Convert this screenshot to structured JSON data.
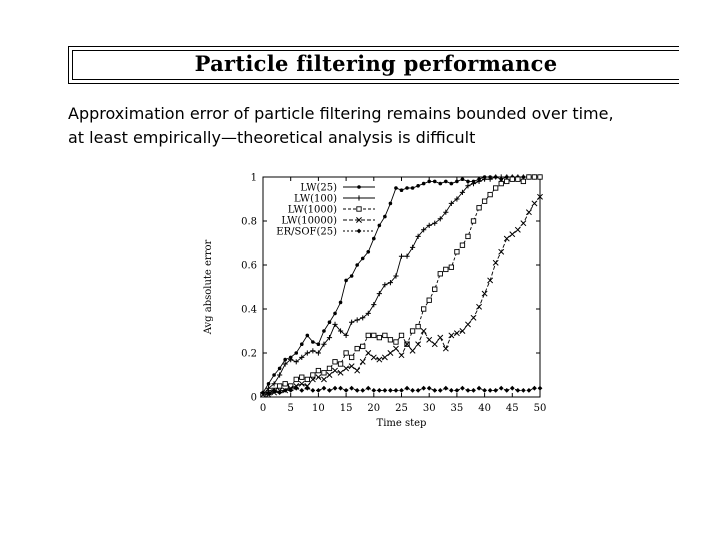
{
  "slide": {
    "title": "Particle filtering performance",
    "body_lines": [
      "Approximation error of particle filtering remains bounded over time,",
      "at least empirically—theoretical analysis is difficult"
    ]
  },
  "chart_data": {
    "type": "line",
    "title": "",
    "xlabel": "Time step",
    "ylabel": "Avg absolute error",
    "xlim": [
      0,
      50
    ],
    "ylim": [
      0,
      1
    ],
    "xticks": [
      "0",
      "5",
      "10",
      "15",
      "20",
      "25",
      "30",
      "35",
      "40",
      "45",
      "50"
    ],
    "yticks": [
      "0",
      "0.2",
      "0.4",
      "0.6",
      "0.8",
      "1"
    ],
    "legend_position": "top-left inside plot",
    "x": [
      0,
      1,
      2,
      3,
      4,
      5,
      6,
      7,
      8,
      9,
      10,
      11,
      12,
      13,
      14,
      15,
      16,
      17,
      18,
      19,
      20,
      21,
      22,
      23,
      24,
      25,
      26,
      27,
      28,
      29,
      30,
      31,
      32,
      33,
      34,
      35,
      36,
      37,
      38,
      39,
      40,
      41,
      42,
      43,
      44,
      45,
      46,
      47,
      48,
      49,
      50
    ],
    "series": [
      {
        "name": "LW(25)",
        "marker": "dot",
        "values": [
          0.02,
          0.06,
          0.1,
          0.13,
          0.17,
          0.18,
          0.2,
          0.24,
          0.28,
          0.25,
          0.24,
          0.3,
          0.34,
          0.38,
          0.43,
          0.53,
          0.55,
          0.6,
          0.63,
          0.66,
          0.72,
          0.78,
          0.82,
          0.88,
          0.95,
          0.94,
          0.95,
          0.95,
          0.96,
          0.97,
          0.98,
          0.98,
          0.97,
          0.98,
          0.97,
          0.98,
          0.99,
          0.98,
          0.98,
          0.99,
          1.0,
          1.0,
          1.0,
          0.99,
          1.0,
          1.0,
          1.0,
          1.0,
          1.0,
          1.0,
          1.0
        ]
      },
      {
        "name": "LW(100)",
        "marker": "plus",
        "values": [
          0.01,
          0.04,
          0.06,
          0.1,
          0.15,
          0.17,
          0.16,
          0.18,
          0.2,
          0.21,
          0.2,
          0.24,
          0.27,
          0.33,
          0.3,
          0.28,
          0.34,
          0.35,
          0.36,
          0.38,
          0.42,
          0.47,
          0.51,
          0.52,
          0.55,
          0.64,
          0.64,
          0.68,
          0.73,
          0.76,
          0.78,
          0.79,
          0.81,
          0.84,
          0.88,
          0.9,
          0.93,
          0.96,
          0.97,
          0.98,
          0.99,
          0.99,
          1.0,
          1.0,
          1.0,
          1.0,
          1.0,
          1.0,
          1.0,
          1.0,
          1.0
        ]
      },
      {
        "name": "LW(1000)",
        "marker": "square",
        "values": [
          0.01,
          0.02,
          0.03,
          0.05,
          0.06,
          0.05,
          0.08,
          0.09,
          0.08,
          0.1,
          0.12,
          0.11,
          0.13,
          0.16,
          0.15,
          0.2,
          0.18,
          0.22,
          0.23,
          0.28,
          0.28,
          0.27,
          0.28,
          0.26,
          0.25,
          0.28,
          0.24,
          0.3,
          0.32,
          0.4,
          0.44,
          0.49,
          0.56,
          0.58,
          0.59,
          0.66,
          0.69,
          0.73,
          0.8,
          0.86,
          0.89,
          0.92,
          0.95,
          0.97,
          0.98,
          0.99,
          0.99,
          0.98,
          1.0,
          1.0,
          1.0
        ]
      },
      {
        "name": "LW(10000)",
        "marker": "cross",
        "values": [
          0.01,
          0.01,
          0.02,
          0.03,
          0.03,
          0.04,
          0.05,
          0.06,
          0.05,
          0.08,
          0.09,
          0.08,
          0.1,
          0.12,
          0.11,
          0.13,
          0.14,
          0.12,
          0.16,
          0.2,
          0.18,
          0.17,
          0.18,
          0.2,
          0.22,
          0.19,
          0.24,
          0.21,
          0.24,
          0.3,
          0.26,
          0.24,
          0.27,
          0.22,
          0.28,
          0.29,
          0.3,
          0.33,
          0.36,
          0.41,
          0.47,
          0.53,
          0.61,
          0.66,
          0.72,
          0.74,
          0.76,
          0.79,
          0.84,
          0.88,
          0.91
        ]
      },
      {
        "name": "ER/SOF(25)",
        "marker": "diamond",
        "values": [
          0.02,
          0.02,
          0.03,
          0.02,
          0.03,
          0.03,
          0.04,
          0.03,
          0.04,
          0.03,
          0.03,
          0.04,
          0.03,
          0.04,
          0.04,
          0.03,
          0.04,
          0.03,
          0.03,
          0.04,
          0.03,
          0.03,
          0.03,
          0.03,
          0.03,
          0.03,
          0.04,
          0.03,
          0.03,
          0.04,
          0.04,
          0.03,
          0.03,
          0.04,
          0.03,
          0.03,
          0.04,
          0.03,
          0.03,
          0.04,
          0.03,
          0.03,
          0.03,
          0.04,
          0.03,
          0.04,
          0.03,
          0.03,
          0.03,
          0.04,
          0.04
        ]
      }
    ]
  }
}
